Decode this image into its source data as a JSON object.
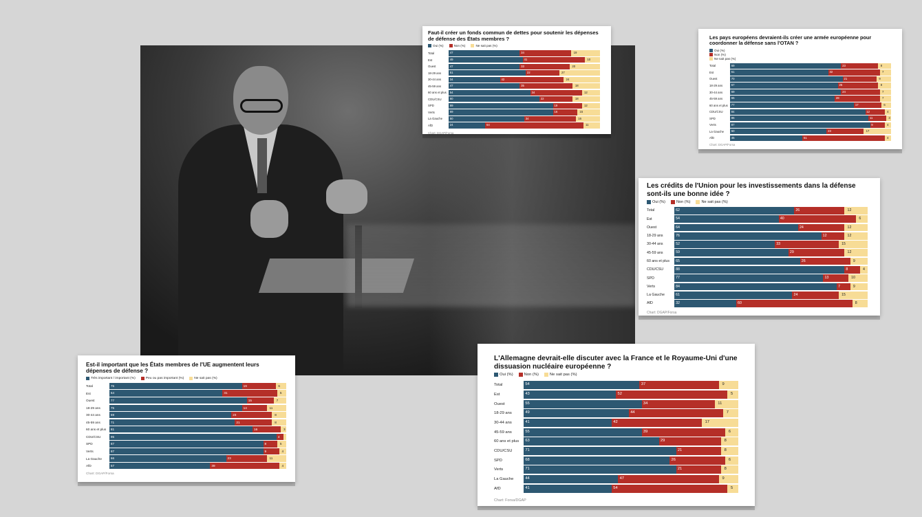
{
  "colors": {
    "oui": "#2d5872",
    "non": "#b52f28",
    "nsp": "#f7dc96"
  },
  "source_1": "Chart: DGAP/Forsa",
  "source_2": "Chart: DGAP/Forsa",
  "source_3": "Chart: DGAP/Forsa",
  "source_4": "Chart: DGAP/Forsa",
  "source_5": "Chart: Forsa/DGAP",
  "chart_data": [
    {
      "type": "bar",
      "stacked": true,
      "title": "Faut-il créer un fonds commun de dettes pour soutenir les dépenses de défense des États membres ?",
      "legend": [
        "Oui (%)",
        "Non (%)",
        "Ne sait pas (%)"
      ],
      "categories": [
        "Total",
        "Est",
        "Ouest",
        "18-29 ans",
        "30-44 ans",
        "45-59 ans",
        "60 ans et plus",
        "CDU/CSU",
        "SPD",
        "Verts",
        "La Gauche",
        "AfD"
      ],
      "series": [
        {
          "name": "Oui (%)",
          "values": [
            47,
            49,
            47,
            51,
            34,
            47,
            54,
            60,
            69,
            69,
            50,
            24
          ]
        },
        {
          "name": "Non (%)",
          "values": [
            34,
            41,
            33,
            22,
            42,
            35,
            34,
            22,
            19,
            16,
            34,
            64
          ]
        },
        {
          "name": "Ne sait pas (%)",
          "values": [
            19,
            10,
            20,
            27,
            24,
            18,
            12,
            18,
            12,
            15,
            16,
            11
          ]
        }
      ]
    },
    {
      "type": "bar",
      "stacked": true,
      "title": "Les pays européens devraient-ils créer une armée européenne pour coordonner la défense sans l'OTAN ?",
      "legend": [
        "Oui (%)",
        "Non (%)",
        "Ne sait pas (%)"
      ],
      "categories": [
        "Total",
        "Est",
        "Ouest",
        "18-29 ans",
        "30-44 ans",
        "45-59 ans",
        "60 ans et plus",
        "CDU/CSU",
        "SPD",
        "Verts",
        "La Gauche",
        "AfD"
      ],
      "series": [
        {
          "name": "Oui (%)",
          "values": [
            69,
            61,
            70,
            67,
            69,
            65,
            77,
            84,
            86,
            87,
            60,
            45
          ]
        },
        {
          "name": "Non (%)",
          "values": [
            23,
            32,
            21,
            25,
            24,
            28,
            17,
            12,
            11,
            9,
            23,
            51
          ]
        },
        {
          "name": "Ne sait pas (%)",
          "values": [
            8,
            7,
            9,
            8,
            7,
            7,
            6,
            4,
            3,
            4,
            17,
            4
          ]
        }
      ]
    },
    {
      "type": "bar",
      "stacked": true,
      "title": "Les crédits de l'Union pour les investissements dans la défense sont-ils une bonne idée ?",
      "legend": [
        "Oui (%)",
        "Non (%)",
        "Ne sait pas (%)"
      ],
      "categories": [
        "Total",
        "Est",
        "Ouest",
        "18-29 ans",
        "30-44 ans",
        "45-59 ans",
        "60 ans et plus",
        "CDU/CSU",
        "SPD",
        "Verts",
        "La Gauche",
        "AfD"
      ],
      "series": [
        {
          "name": "Oui (%)",
          "values": [
            62,
            54,
            64,
            76,
            52,
            59,
            65,
            88,
            77,
            84,
            61,
            32
          ]
        },
        {
          "name": "Non (%)",
          "values": [
            26,
            40,
            24,
            12,
            33,
            29,
            26,
            8,
            13,
            7,
            24,
            60
          ]
        },
        {
          "name": "Ne sait pas (%)",
          "values": [
            12,
            6,
            12,
            12,
            15,
            12,
            9,
            4,
            10,
            9,
            15,
            8
          ]
        }
      ]
    },
    {
      "type": "bar",
      "stacked": true,
      "title": "Est-il important que les États membres de l'UE augmentent leurs dépenses de défense ?",
      "legend": [
        "Très important / important (%)",
        "Peu ou pas important (%)",
        "Ne sait pas (%)"
      ],
      "categories": [
        "Total",
        "Est",
        "Ouest",
        "18-29 ans",
        "30-44 ans",
        "45-59 ans",
        "60 ans et plus",
        "CDU/CSU",
        "SPD",
        "Verts",
        "La Gauche",
        "AfD"
      ],
      "series": [
        {
          "name": "Très important / important (%)",
          "values": [
            75,
            64,
            77,
            75,
            69,
            71,
            81,
            95,
            87,
            87,
            66,
            57
          ]
        },
        {
          "name": "Peu ou pas important (%)",
          "values": [
            19,
            31,
            15,
            14,
            23,
            21,
            16,
            4,
            8,
            9,
            23,
            39
          ]
        },
        {
          "name": "Ne sait pas (%)",
          "values": [
            6,
            5,
            7,
            11,
            8,
            8,
            3,
            1,
            5,
            4,
            11,
            4
          ]
        }
      ]
    },
    {
      "type": "bar",
      "stacked": true,
      "title": "L'Allemagne devrait-elle discuter avec la France et le Royaume-Uni d'une dissuasion nucléaire européenne ?",
      "legend": [
        "Oui (%)",
        "Non (%)",
        "Ne sait pas (%)"
      ],
      "categories": [
        "Total",
        "Est",
        "Ouest",
        "18-29 ans",
        "30-44 ans",
        "45-59 ans",
        "60 ans et plus",
        "CDU/CSU",
        "SPD",
        "Verts",
        "La Gauche",
        "AfD"
      ],
      "series": [
        {
          "name": "Oui (%)",
          "values": [
            54,
            43,
            55,
            49,
            41,
            55,
            63,
            71,
            68,
            71,
            44,
            41
          ]
        },
        {
          "name": "Non (%)",
          "values": [
            37,
            52,
            34,
            44,
            42,
            39,
            29,
            21,
            26,
            21,
            47,
            54
          ]
        },
        {
          "name": "Ne sait pas (%)",
          "values": [
            9,
            5,
            11,
            7,
            17,
            6,
            8,
            8,
            6,
            8,
            9,
            5
          ]
        }
      ]
    }
  ]
}
